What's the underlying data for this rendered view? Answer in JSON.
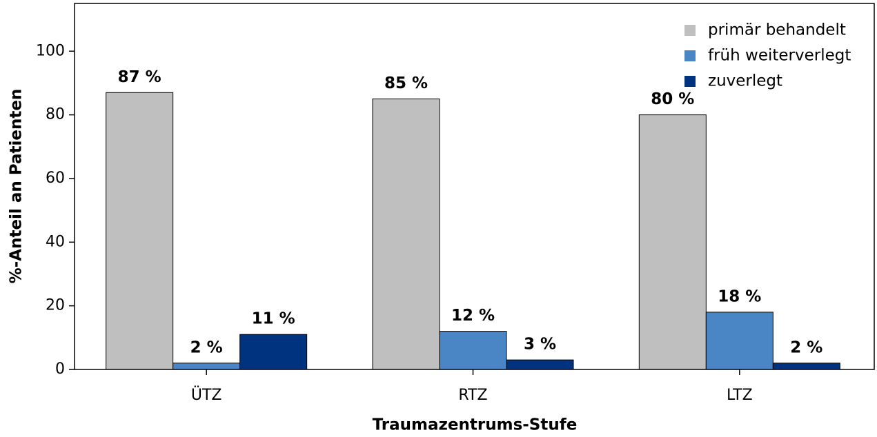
{
  "chart_data": {
    "type": "bar",
    "x_label": "Traumazentrums-Stufe",
    "y_label": "%-Anteil an Patienten",
    "categories": [
      "ÜTZ",
      "RTZ",
      "LTZ"
    ],
    "series": [
      {
        "name": "primär behandelt",
        "color": "#bfbfbf",
        "values": [
          87,
          85,
          80
        ],
        "value_labels": [
          "87 %",
          "85 %",
          "80 %"
        ]
      },
      {
        "name": "früh weiterverlegt",
        "color": "#4a86c5",
        "values": [
          2,
          12,
          18
        ],
        "value_labels": [
          "2 %",
          "12 %",
          "18 %"
        ]
      },
      {
        "name": "zuverlegt",
        "color": "#00337f",
        "values": [
          11,
          3,
          2
        ],
        "value_labels": [
          "11 %",
          "3 %",
          "2 %"
        ]
      }
    ],
    "ylim": [
      0,
      115
    ],
    "yticks": [
      0,
      20,
      40,
      60,
      80,
      100
    ],
    "legend": "upper right"
  }
}
